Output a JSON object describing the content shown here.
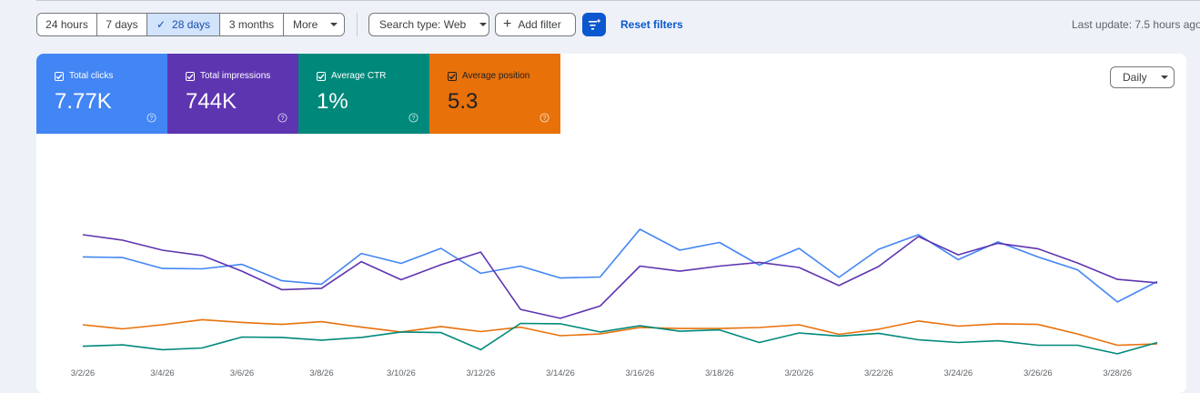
{
  "filters": {
    "date_ranges": [
      {
        "label": "24 hours",
        "selected": false
      },
      {
        "label": "7 days",
        "selected": false
      },
      {
        "label": "28 days",
        "selected": true
      },
      {
        "label": "3 months",
        "selected": false
      },
      {
        "label": "More",
        "selected": false
      }
    ],
    "search_type_label": "Search type: Web",
    "add_filter_label": "Add filter",
    "reset_filters_label": "Reset filters",
    "last_update": "Last update: 7.5 hours ago"
  },
  "metrics": [
    {
      "label": "Total clicks",
      "value": "7.77K",
      "color": "#4285f4",
      "help_icon": "help-circle-icon"
    },
    {
      "label": "Total impressions",
      "value": "744K",
      "color": "#5e35b1",
      "help_icon": "help-circle-icon"
    },
    {
      "label": "Average CTR",
      "value": "1%",
      "color": "#00897b",
      "help_icon": "help-circle-icon"
    },
    {
      "label": "Average position",
      "value": "5.3",
      "color": "#e8710a",
      "help_icon": "help-circle-icon"
    }
  ],
  "granularity_label": "Daily",
  "chart_data": {
    "type": "line",
    "x": [
      "3/2/26",
      "3/3/26",
      "3/4/26",
      "3/5/26",
      "3/6/26",
      "3/7/26",
      "3/8/26",
      "3/9/26",
      "3/10/26",
      "3/11/26",
      "3/12/26",
      "3/13/26",
      "3/14/26",
      "3/15/26",
      "3/16/26",
      "3/17/26",
      "3/18/26",
      "3/19/26",
      "3/20/26",
      "3/21/26",
      "3/22/26",
      "3/23/26",
      "3/24/26",
      "3/25/26",
      "3/26/26",
      "3/27/26",
      "3/28/26",
      "3/29/26"
    ],
    "tick_labels": [
      "3/2/26",
      "3/4/26",
      "3/6/26",
      "3/8/26",
      "3/10/26",
      "3/12/26",
      "3/14/26",
      "3/16/26",
      "3/18/26",
      "3/20/26",
      "3/22/26",
      "3/24/26",
      "3/26/26",
      "3/28/26"
    ],
    "grid": false,
    "legend": "none",
    "series": [
      {
        "color": "#4285f4",
        "values": [
          0.797,
          0.793,
          0.713,
          0.71,
          0.743,
          0.623,
          0.597,
          0.823,
          0.75,
          0.86,
          0.677,
          0.73,
          0.643,
          0.65,
          1.0,
          0.847,
          0.903,
          0.737,
          0.86,
          0.647,
          0.853,
          0.96,
          0.777,
          0.907,
          0.797,
          0.703,
          0.467,
          0.617
        ]
      },
      {
        "color": "#5e35b1",
        "values": [
          0.96,
          0.92,
          0.847,
          0.807,
          0.693,
          0.557,
          0.567,
          0.763,
          0.63,
          0.74,
          0.833,
          0.413,
          0.347,
          0.437,
          0.73,
          0.693,
          0.73,
          0.757,
          0.72,
          0.587,
          0.727,
          0.947,
          0.813,
          0.897,
          0.857,
          0.753,
          0.633,
          0.607
        ]
      },
      {
        "color": "#e8710a",
        "values": [
          0.3,
          0.27,
          0.3,
          0.337,
          0.317,
          0.303,
          0.323,
          0.283,
          0.247,
          0.287,
          0.25,
          0.283,
          0.22,
          0.233,
          0.28,
          0.273,
          0.273,
          0.28,
          0.3,
          0.23,
          0.267,
          0.327,
          0.29,
          0.307,
          0.303,
          0.233,
          0.15,
          0.16
        ]
      },
      {
        "color": "#00897b",
        "values": [
          0.143,
          0.153,
          0.117,
          0.13,
          0.21,
          0.207,
          0.187,
          0.207,
          0.247,
          0.243,
          0.117,
          0.31,
          0.307,
          0.247,
          0.293,
          0.253,
          0.263,
          0.17,
          0.24,
          0.217,
          0.237,
          0.19,
          0.17,
          0.183,
          0.15,
          0.15,
          0.087,
          0.17
        ]
      }
    ]
  }
}
